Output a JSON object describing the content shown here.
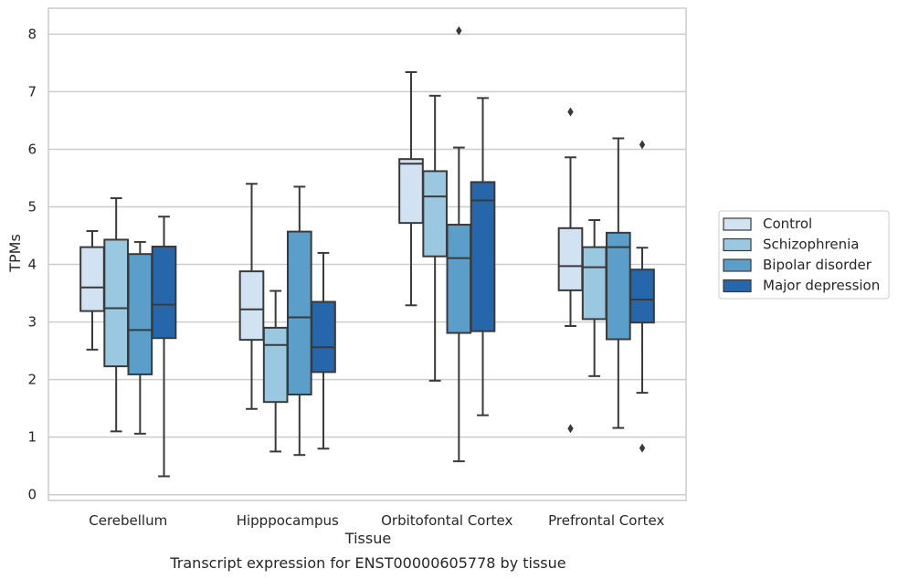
{
  "chart_data": {
    "type": "box",
    "xlabel": "Tissue",
    "ylabel": "TPMs",
    "caption": "Transcript expression for ENST00000605778 by tissue",
    "ylim": [
      -0.1,
      8.45
    ],
    "yticks": [
      0,
      1,
      2,
      3,
      4,
      5,
      6,
      7,
      8
    ],
    "grid": "horizontal",
    "legend_position": "right",
    "categories": [
      "Cerebellum",
      "Hipppocampus",
      "Orbitofontal Cortex",
      "Prefrontal Cortex"
    ],
    "series": [
      {
        "name": "Control",
        "color": "#d1e2f2",
        "boxes": [
          {
            "whislo": 2.52,
            "q1": 3.19,
            "med": 3.6,
            "q3": 4.3,
            "whishi": 4.58,
            "fliers": []
          },
          {
            "whislo": 1.49,
            "q1": 2.69,
            "med": 3.22,
            "q3": 3.88,
            "whishi": 5.4,
            "fliers": []
          },
          {
            "whislo": 3.29,
            "q1": 4.72,
            "med": 5.75,
            "q3": 5.83,
            "whishi": 7.34,
            "fliers": []
          },
          {
            "whislo": 2.93,
            "q1": 3.55,
            "med": 3.97,
            "q3": 4.63,
            "whishi": 5.86,
            "fliers": [
              6.65,
              1.15
            ]
          }
        ]
      },
      {
        "name": "Schizophrenia",
        "color": "#9ac8e0",
        "boxes": [
          {
            "whislo": 1.1,
            "q1": 2.23,
            "med": 3.24,
            "q3": 4.43,
            "whishi": 5.15,
            "fliers": []
          },
          {
            "whislo": 0.75,
            "q1": 1.61,
            "med": 2.6,
            "q3": 2.9,
            "whishi": 3.54,
            "fliers": []
          },
          {
            "whislo": 1.98,
            "q1": 4.14,
            "med": 5.18,
            "q3": 5.62,
            "whishi": 6.93,
            "fliers": []
          },
          {
            "whislo": 2.06,
            "q1": 3.05,
            "med": 3.95,
            "q3": 4.3,
            "whishi": 4.77,
            "fliers": []
          }
        ]
      },
      {
        "name": "Bipolar disorder",
        "color": "#5a9ec9",
        "boxes": [
          {
            "whislo": 1.06,
            "q1": 2.09,
            "med": 2.86,
            "q3": 4.18,
            "whishi": 4.39,
            "fliers": []
          },
          {
            "whislo": 0.69,
            "q1": 1.74,
            "med": 3.08,
            "q3": 4.57,
            "whishi": 5.35,
            "fliers": []
          },
          {
            "whislo": 0.58,
            "q1": 2.81,
            "med": 4.11,
            "q3": 4.69,
            "whishi": 6.03,
            "fliers": [
              8.06
            ]
          },
          {
            "whislo": 1.16,
            "q1": 2.7,
            "med": 4.3,
            "q3": 4.55,
            "whishi": 6.19,
            "fliers": []
          }
        ]
      },
      {
        "name": "Major depression",
        "color": "#2666aa",
        "boxes": [
          {
            "whislo": 0.32,
            "q1": 2.72,
            "med": 3.3,
            "q3": 4.31,
            "whishi": 4.83,
            "fliers": []
          },
          {
            "whislo": 0.8,
            "q1": 2.13,
            "med": 2.56,
            "q3": 3.35,
            "whishi": 4.2,
            "fliers": []
          },
          {
            "whislo": 1.38,
            "q1": 2.84,
            "med": 5.11,
            "q3": 5.43,
            "whishi": 6.89,
            "fliers": []
          },
          {
            "whislo": 1.77,
            "q1": 2.99,
            "med": 3.39,
            "q3": 3.91,
            "whishi": 4.29,
            "fliers": [
              6.08,
              0.81
            ]
          }
        ]
      }
    ]
  }
}
